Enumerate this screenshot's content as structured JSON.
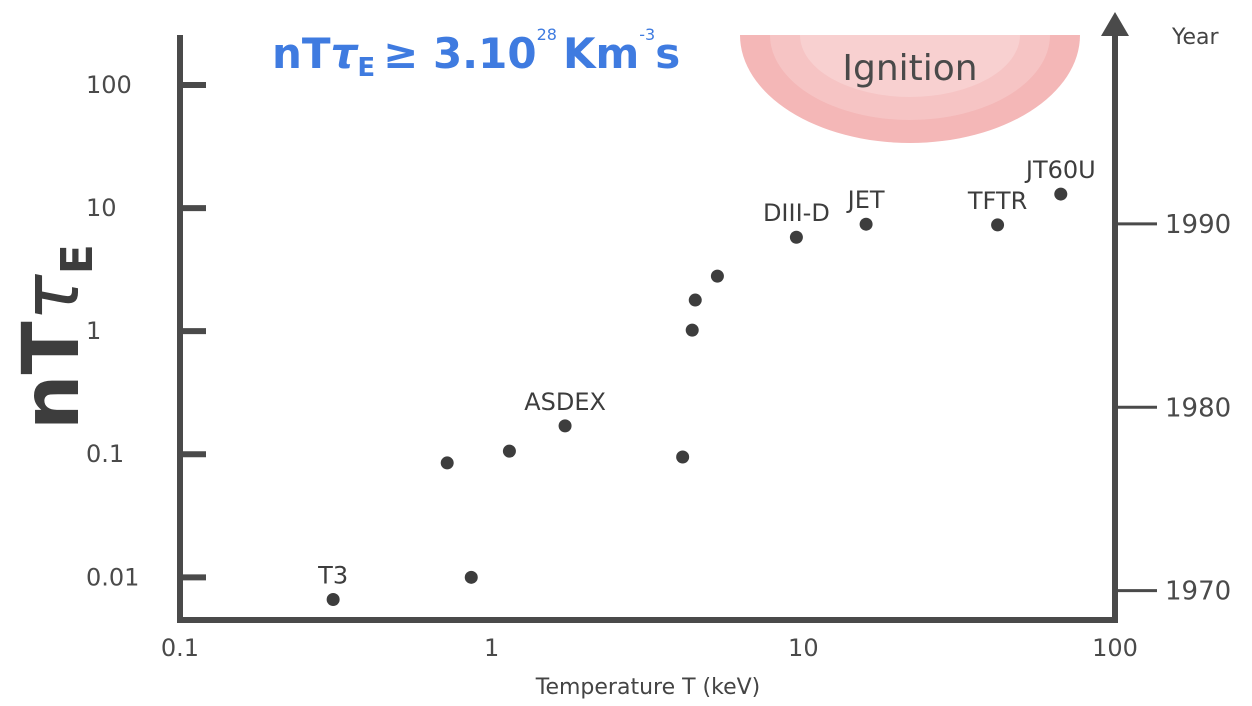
{
  "chart_data": {
    "type": "scatter",
    "title": {
      "nt": "nT",
      "tau": "τ",
      "sub": "E",
      "rel": "≥ 3.10",
      "exp": "28",
      "unit": "Km",
      "unit_exp": "-3",
      "s": "s"
    },
    "y_label": {
      "nt": "nT",
      "tau": "τ",
      "sub": "E"
    },
    "x_label": "Temperature T (keV)",
    "y2_label": "Year",
    "annotation": "Ignition",
    "log_x": true,
    "log_y": true,
    "xlim": [
      0.1,
      100
    ],
    "xticks": [
      0.1,
      1,
      10,
      100
    ],
    "ylim": [
      0.0045,
      255
    ],
    "yticks": [
      0.01,
      0.1,
      1,
      10,
      100
    ],
    "y2lim": [
      1968.4,
      2000.3
    ],
    "y2ticks": [
      1970,
      1980,
      1990
    ],
    "color": "#3d3d3d",
    "x": [
      0.31,
      0.72,
      0.86,
      1.14,
      1.72,
      4.1,
      4.4,
      4.5,
      5.3,
      9.5,
      15.9,
      42,
      67
    ],
    "values": [
      0.0066,
      0.085,
      0.01,
      0.106,
      0.17,
      0.095,
      1.02,
      1.79,
      2.8,
      5.8,
      7.4,
      7.3,
      13.0
    ],
    "labels": [
      "T3",
      null,
      null,
      null,
      "ASDEX",
      null,
      null,
      null,
      null,
      "DIII-D",
      "JET",
      "TFTR",
      "JT60U"
    ]
  }
}
